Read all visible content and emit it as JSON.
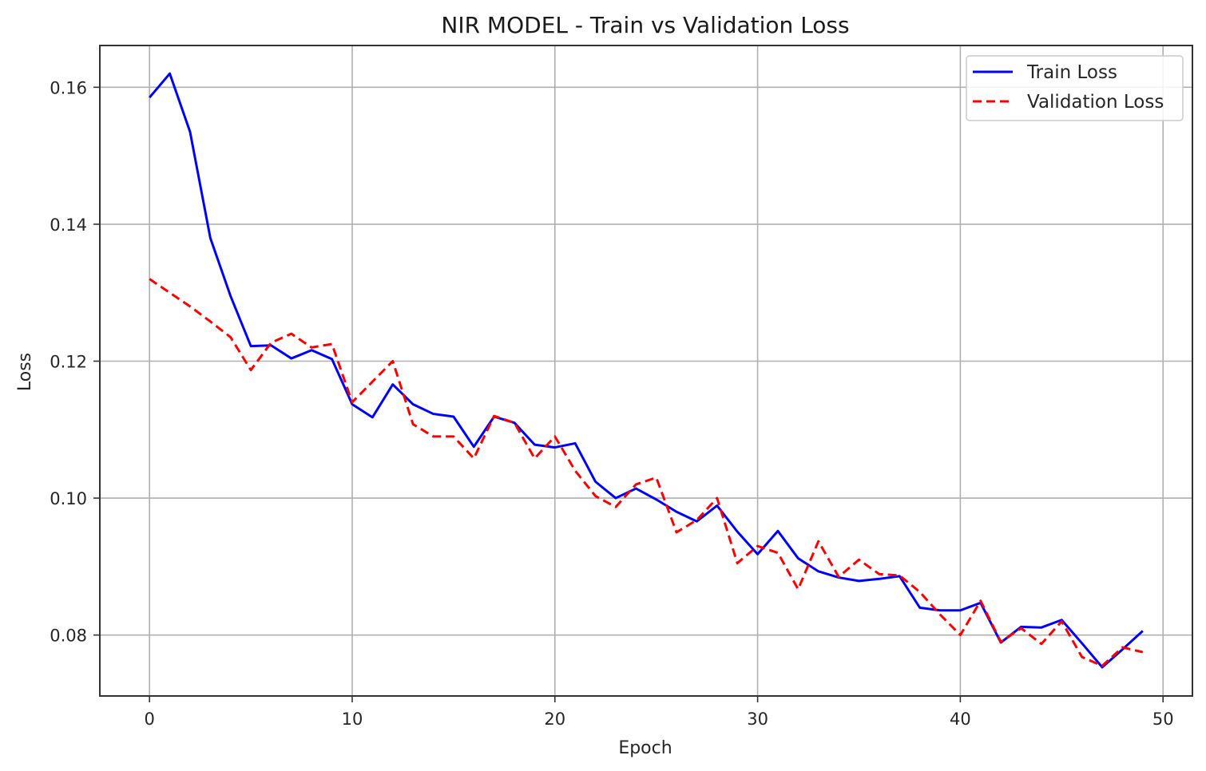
{
  "chart_data": {
    "type": "line",
    "title": "NIR MODEL - Train vs Validation Loss",
    "xlabel": "Epoch",
    "ylabel": "Loss",
    "xlim": [
      -2.45,
      51.45
    ],
    "ylim": [
      0.0711,
      0.1661
    ],
    "xticks": [
      0,
      10,
      20,
      30,
      40,
      50
    ],
    "yticks": [
      0.08,
      0.1,
      0.12,
      0.14,
      0.16
    ],
    "xtick_labels": [
      "0",
      "10",
      "20",
      "30",
      "40",
      "50"
    ],
    "ytick_labels": [
      "0.08",
      "0.10",
      "0.12",
      "0.14",
      "0.16"
    ],
    "grid": true,
    "legend_position": "top-right",
    "x": [
      0,
      1,
      2,
      3,
      4,
      5,
      6,
      7,
      8,
      9,
      10,
      11,
      12,
      13,
      14,
      15,
      16,
      17,
      18,
      19,
      20,
      21,
      22,
      23,
      24,
      25,
      26,
      27,
      28,
      29,
      30,
      31,
      32,
      33,
      34,
      35,
      36,
      37,
      38,
      39,
      40,
      41,
      42,
      43,
      44,
      45,
      46,
      47,
      48,
      49
    ],
    "series": [
      {
        "name": "Train Loss",
        "color": "#0000ff",
        "style": "solid",
        "values": [
          0.1585,
          0.162,
          0.1535,
          0.138,
          0.1295,
          0.1222,
          0.1223,
          0.1204,
          0.1216,
          0.1203,
          0.1137,
          0.1118,
          0.1166,
          0.1137,
          0.1123,
          0.1119,
          0.1075,
          0.1119,
          0.111,
          0.1078,
          0.1074,
          0.108,
          0.1024,
          0.1,
          0.1014,
          0.0998,
          0.098,
          0.0966,
          0.0989,
          0.0951,
          0.0918,
          0.0952,
          0.0912,
          0.0893,
          0.0884,
          0.0879,
          0.0882,
          0.0886,
          0.084,
          0.0836,
          0.0836,
          0.0847,
          0.0789,
          0.0812,
          0.0811,
          0.0822,
          0.0788,
          0.0753,
          0.0779,
          0.0806
        ]
      },
      {
        "name": "Validation Loss",
        "color": "#ff0000",
        "style": "dashed",
        "values": [
          0.132,
          0.13,
          0.128,
          0.1258,
          0.1235,
          0.1187,
          0.1227,
          0.124,
          0.122,
          0.1225,
          0.114,
          0.117,
          0.12,
          0.1108,
          0.109,
          0.109,
          0.1058,
          0.112,
          0.111,
          0.1058,
          0.109,
          0.104,
          0.1003,
          0.0987,
          0.102,
          0.103,
          0.095,
          0.0968,
          0.1,
          0.0905,
          0.093,
          0.092,
          0.0867,
          0.0937,
          0.0885,
          0.091,
          0.0889,
          0.0887,
          0.0863,
          0.083,
          0.08,
          0.085,
          0.079,
          0.081,
          0.0787,
          0.082,
          0.0768,
          0.0755,
          0.0782,
          0.0775
        ]
      }
    ]
  }
}
